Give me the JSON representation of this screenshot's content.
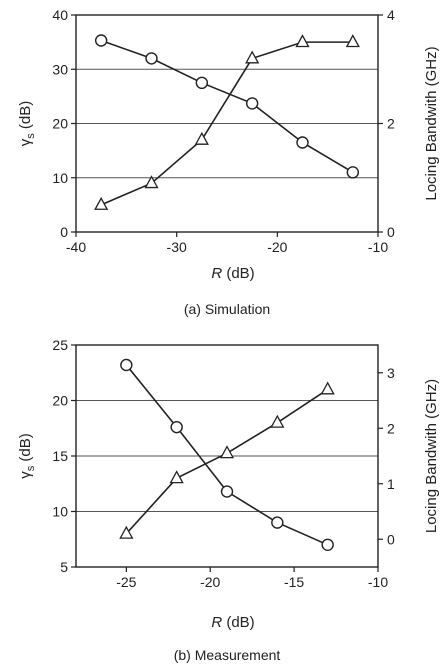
{
  "chart_data": [
    {
      "type": "line",
      "caption": "(a) Simulation",
      "xlabel": "R",
      "xlabel_unit": "(dB)",
      "ylabel": "γ",
      "ylabel_sub": "s",
      "ylabel_unit": "(dB)",
      "y2label": "Locing Bandwith (GHz)",
      "xlim": [
        -40,
        -10
      ],
      "ylim": [
        0,
        40
      ],
      "y2lim": [
        0,
        4
      ],
      "xticks": [
        -40,
        -30,
        -20,
        -10
      ],
      "xtick_labels": [
        "-40",
        "-30",
        "-20",
        "-10"
      ],
      "yticks": [
        0,
        10,
        20,
        30,
        40
      ],
      "ytick_labels": [
        "0",
        "10",
        "20",
        "30",
        "40"
      ],
      "y2ticks": [
        0,
        2,
        4
      ],
      "y2tick_labels": [
        "0",
        "2",
        "4"
      ],
      "grid": "horizontal",
      "series": [
        {
          "marker": "circle",
          "axis": "left",
          "x": [
            -37.5,
            -32.5,
            -27.5,
            -22.5,
            -17.5,
            -12.5
          ],
          "y": [
            35.3,
            32.0,
            27.5,
            23.7,
            16.5,
            11.0
          ]
        },
        {
          "marker": "triangle",
          "axis": "right",
          "x": [
            -37.5,
            -32.5,
            -27.5,
            -22.5,
            -17.5,
            -12.5
          ],
          "y": [
            0.5,
            0.9,
            1.7,
            3.2,
            3.5,
            3.5
          ]
        }
      ]
    },
    {
      "type": "line",
      "caption": "(b) Measurement",
      "xlabel": "R",
      "xlabel_unit": "(dB)",
      "ylabel": "γ",
      "ylabel_sub": "s",
      "ylabel_unit": "(dB)",
      "y2label": "Locing Bandwith (GHz)",
      "xlim": [
        -28,
        -10
      ],
      "ylim": [
        5,
        25
      ],
      "y2lim": [
        -0.5,
        3.5
      ],
      "xticks": [
        -25,
        -20,
        -15,
        -10
      ],
      "xtick_labels": [
        "-25",
        "-20",
        "-15",
        "-10"
      ],
      "yticks": [
        5,
        10,
        15,
        20,
        25
      ],
      "ytick_labels": [
        "5",
        "10",
        "15",
        "20",
        "25"
      ],
      "y2ticks": [
        0,
        1,
        2,
        3
      ],
      "y2tick_labels": [
        "0",
        "1",
        "2",
        "3"
      ],
      "grid": "horizontal",
      "series": [
        {
          "marker": "circle",
          "axis": "left",
          "x": [
            -25,
            -22,
            -19,
            -16,
            -13
          ],
          "y": [
            23.2,
            17.6,
            11.8,
            9.0,
            7.0
          ]
        },
        {
          "marker": "triangle",
          "axis": "right",
          "x": [
            -25,
            -22,
            -19,
            -16,
            -13
          ],
          "y": [
            0.1,
            1.1,
            1.55,
            2.1,
            2.7
          ]
        }
      ]
    }
  ]
}
